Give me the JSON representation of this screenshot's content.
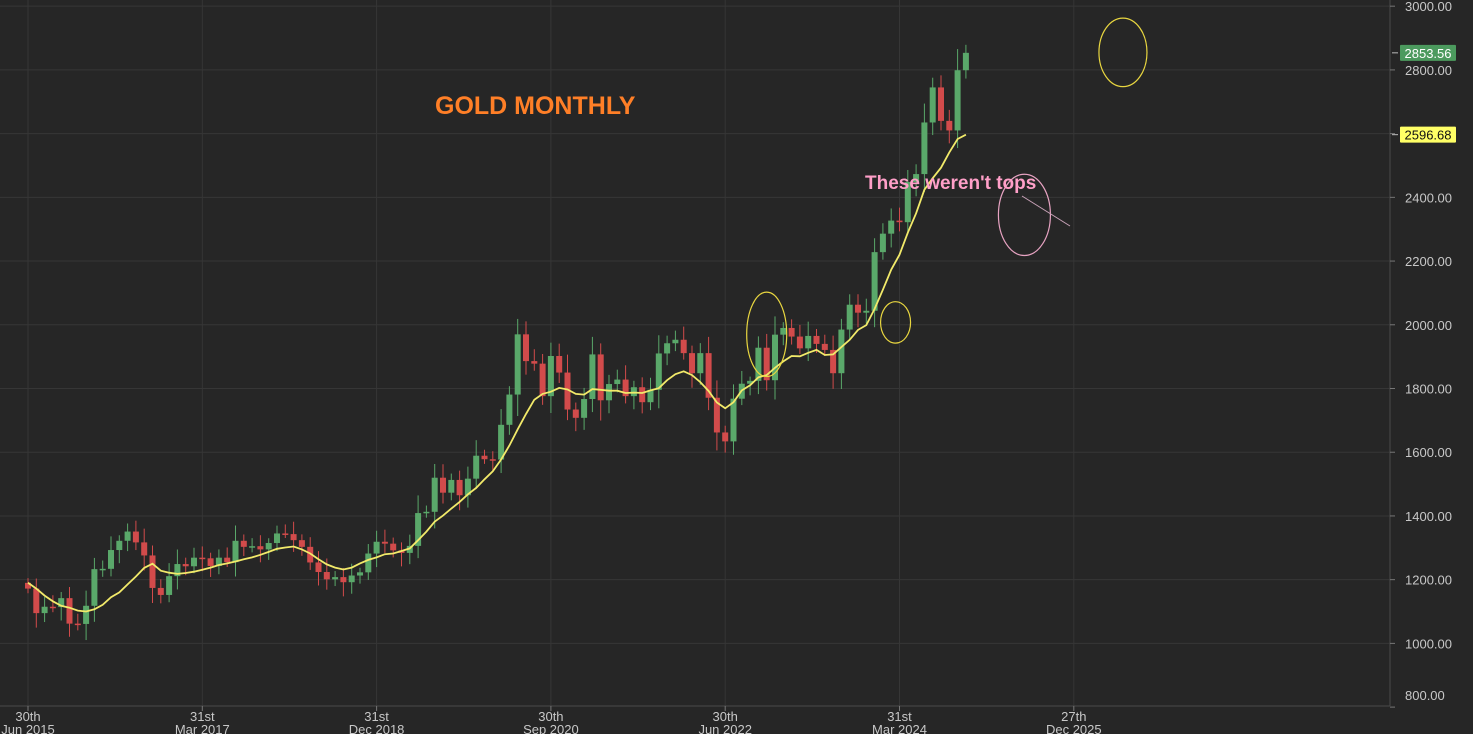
{
  "chart_data": {
    "type": "candlestick",
    "title": "GOLD MONTHLY",
    "annotation": "These weren't tops",
    "ylim": [
      800,
      3000
    ],
    "y_ticks": [
      800,
      1000,
      1200,
      1400,
      1600,
      1800,
      2000,
      2200,
      2400,
      2600,
      2800,
      3000
    ],
    "y_tick_labels": [
      "800.00",
      "1000.00",
      "1200.00",
      "1400.00",
      "1600.00",
      "1800.00",
      "2000.00",
      "2200.00",
      "2400.00",
      "2600.00",
      "2800.00",
      "3000.00"
    ],
    "x_ticks": [
      {
        "day": "30th",
        "month": "Jun 2015"
      },
      {
        "day": "31st",
        "month": "Mar 2017"
      },
      {
        "day": "31st",
        "month": "Dec 2018"
      },
      {
        "day": "30th",
        "month": "Sep 2020"
      },
      {
        "day": "30th",
        "month": "Jun 2022"
      },
      {
        "day": "31st",
        "month": "Mar 2024"
      },
      {
        "day": "27th",
        "month": "Dec 2025"
      }
    ],
    "first_month": "2015-06",
    "last_price": {
      "label": "2853.56",
      "value": 2853.56,
      "color": "#4c9a5e"
    },
    "ma_price": {
      "label": "2596.68",
      "value": 2596.68,
      "color": "#ffff66"
    },
    "colors": {
      "up": "#5aa86a",
      "down": "#d24b4b",
      "ma": "#f2ea6a",
      "grid": "#363636",
      "circle": "#e8d640",
      "pink_circle": "#e7a3c2"
    },
    "closes": [
      1172,
      1095,
      1115,
      1114,
      1142,
      1062,
      1061,
      1118,
      1233,
      1234,
      1293,
      1322,
      1351,
      1317,
      1276,
      1174,
      1152,
      1211,
      1249,
      1242,
      1269,
      1267,
      1243,
      1269,
      1255,
      1322,
      1303,
      1305,
      1295,
      1315,
      1345,
      1343,
      1324,
      1303,
      1254,
      1224,
      1201,
      1208,
      1192,
      1213,
      1223,
      1282,
      1319,
      1313,
      1292,
      1284,
      1306,
      1409,
      1413,
      1520,
      1473,
      1513,
      1465,
      1517,
      1589,
      1578,
      1577,
      1686,
      1781,
      1970,
      1886,
      1878,
      1776,
      1902,
      1850,
      1734,
      1708,
      1767,
      1907,
      1763,
      1814,
      1828,
      1776,
      1804,
      1757,
      1796,
      1910,
      1942,
      1953,
      1911,
      1848,
      1911,
      1771,
      1662,
      1634,
      1768,
      1815,
      1824,
      1928,
      1826,
      1969,
      1990,
      1963,
      1926,
      1965,
      1940,
      1921,
      1848,
      1985,
      2063,
      2038,
      2044,
      2228,
      2286,
      2327,
      2322,
      2448,
      2473,
      2635,
      2745,
      2640,
      2610,
      2799,
      2853.56
    ],
    "ma": [
      1190,
      1172,
      1150,
      1132,
      1118,
      1112,
      1103,
      1100,
      1107,
      1121,
      1145,
      1160,
      1185,
      1210,
      1237,
      1250,
      1228,
      1222,
      1218,
      1221,
      1225,
      1231,
      1238,
      1246,
      1251,
      1257,
      1264,
      1270,
      1278,
      1287,
      1297,
      1301,
      1304,
      1295,
      1282,
      1264,
      1248,
      1238,
      1232,
      1238,
      1251,
      1262,
      1270,
      1280,
      1282,
      1290,
      1298,
      1324,
      1351,
      1382,
      1401,
      1423,
      1444,
      1468,
      1488,
      1515,
      1540,
      1577,
      1621,
      1672,
      1720,
      1765,
      1783,
      1790,
      1802,
      1797,
      1783,
      1781,
      1798,
      1796,
      1793,
      1793,
      1786,
      1787,
      1786,
      1794,
      1801,
      1826,
      1845,
      1854,
      1842,
      1820,
      1792,
      1756,
      1738,
      1757,
      1794,
      1810,
      1835,
      1842,
      1865,
      1885,
      1902,
      1901,
      1912,
      1921,
      1905,
      1907,
      1930,
      1953,
      1984,
      1999,
      2050,
      2110,
      2173,
      2220,
      2289,
      2350,
      2424,
      2460,
      2493,
      2541,
      2583,
      2596.68
    ]
  }
}
